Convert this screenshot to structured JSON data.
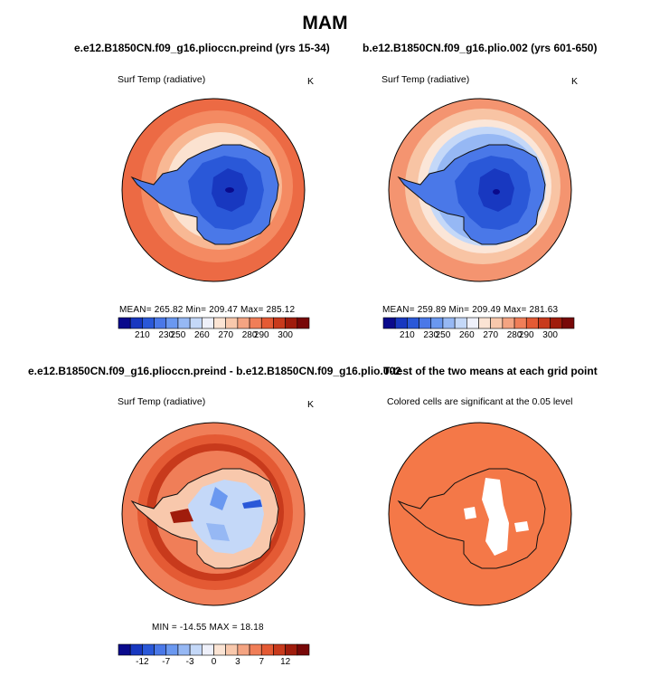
{
  "figure_title": "MAM",
  "panels": {
    "top_left": {
      "title": "e.e12.B1850CN.f09_g16.plioccn.preind (yrs 15-34)",
      "variable": "Surf Temp (radiative)",
      "units": "K",
      "stats": "MEAN= 265.82   Min= 209.47   Max= 285.12"
    },
    "top_right": {
      "title": "b.e12.B1850CN.f09_g16.plio.002 (yrs 601-650)",
      "variable": "Surf Temp (radiative)",
      "units": "K",
      "stats": "MEAN= 259.89   Min= 209.49   Max= 281.63"
    },
    "bottom_left": {
      "title": "e.e12.B1850CN.f09_g16.plioccn.preind - b.e12.B1850CN.f09_g16.plio.002",
      "variable": "Surf Temp (radiative)",
      "units": "K",
      "stats": "MIN = -14.55  MAX =  18.18"
    },
    "bottom_right": {
      "title": "T-test of the two means at each grid point",
      "note": "Colored cells are significant at the 0.05 level"
    }
  },
  "colorbars": {
    "absolute": {
      "labels": [
        "210",
        "230",
        "250",
        "260",
        "270",
        "280",
        "290",
        "300"
      ],
      "colors": [
        "#0a0a8c",
        "#1838c0",
        "#2a58d8",
        "#4a78e8",
        "#6a98f0",
        "#96b8f4",
        "#c4d8f8",
        "#eef0fa",
        "#fbe4d4",
        "#f8c8ac",
        "#f4a482",
        "#f07e58",
        "#e45a34",
        "#c83a1c",
        "#a01c0c",
        "#780808"
      ]
    },
    "difference": {
      "labels": [
        "-12",
        "-7",
        "-3",
        "0",
        "3",
        "7",
        "12"
      ],
      "colors": [
        "#0a0a8c",
        "#1838c0",
        "#2a58d8",
        "#4a78e8",
        "#6a98f0",
        "#96b8f4",
        "#c4d8f8",
        "#eef0fa",
        "#fbe4d4",
        "#f8c8ac",
        "#f4a482",
        "#f07e58",
        "#e45a34",
        "#c83a1c",
        "#a01c0c",
        "#780808"
      ]
    }
  },
  "colors": {
    "ttest_fill": "#f47848",
    "coast": "#111111"
  }
}
